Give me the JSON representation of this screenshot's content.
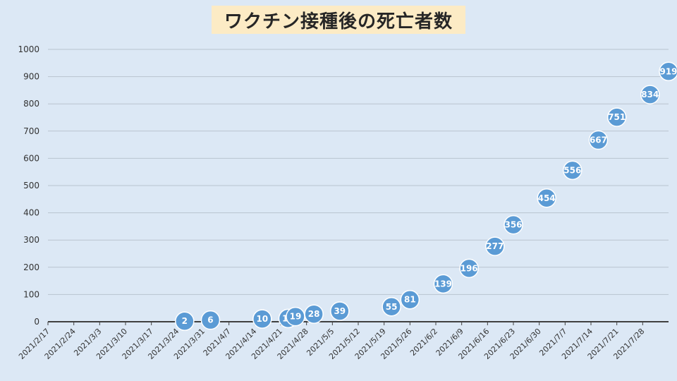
{
  "chart_data": {
    "type": "scatter",
    "title": "ワクチン接種後の死亡者数",
    "ylim": [
      0,
      1000
    ],
    "yticks": [
      0,
      100,
      200,
      300,
      400,
      500,
      600,
      700,
      800,
      900,
      1000
    ],
    "x_tick_labels": [
      "2021/2/17",
      "2021/2/24",
      "2021/3/3",
      "2021/3/10",
      "2021/3/17",
      "2021/3/24",
      "2021/3/31",
      "2021/4/7",
      "2021/4/14",
      "2021/4/21",
      "2021/4/28",
      "2021/5/5",
      "2021/5/12",
      "2021/5/19",
      "2021/5/26",
      "2021/6/2",
      "2021/6/9",
      "2021/6/16",
      "2021/6/23",
      "2021/6/30",
      "2021/7/7",
      "2021/7/14",
      "2021/7/21",
      "2021/7/28"
    ],
    "grid": true,
    "legend": "none",
    "point_color": "#5b9bd5",
    "series": [
      {
        "points": [
          {
            "x": "2021/3/26",
            "y": 2
          },
          {
            "x": "2021/4/2",
            "y": 6
          },
          {
            "x": "2021/4/16",
            "y": 10
          },
          {
            "x": "2021/4/23",
            "y": 12
          },
          {
            "x": "2021/4/25",
            "y": 19
          },
          {
            "x": "2021/4/30",
            "y": 28
          },
          {
            "x": "2021/5/7",
            "y": 39
          },
          {
            "x": "2021/5/21",
            "y": 55
          },
          {
            "x": "2021/5/26",
            "y": 81
          },
          {
            "x": "2021/6/4",
            "y": 139
          },
          {
            "x": "2021/6/11",
            "y": 196
          },
          {
            "x": "2021/6/18",
            "y": 277
          },
          {
            "x": "2021/6/23",
            "y": 356
          },
          {
            "x": "2021/7/2",
            "y": 454
          },
          {
            "x": "2021/7/9",
            "y": 556
          },
          {
            "x": "2021/7/16",
            "y": 667
          },
          {
            "x": "2021/7/21",
            "y": 751
          },
          {
            "x": "2021/7/30",
            "y": 834
          },
          {
            "x": "2021/8/4",
            "y": 919
          }
        ]
      }
    ]
  }
}
